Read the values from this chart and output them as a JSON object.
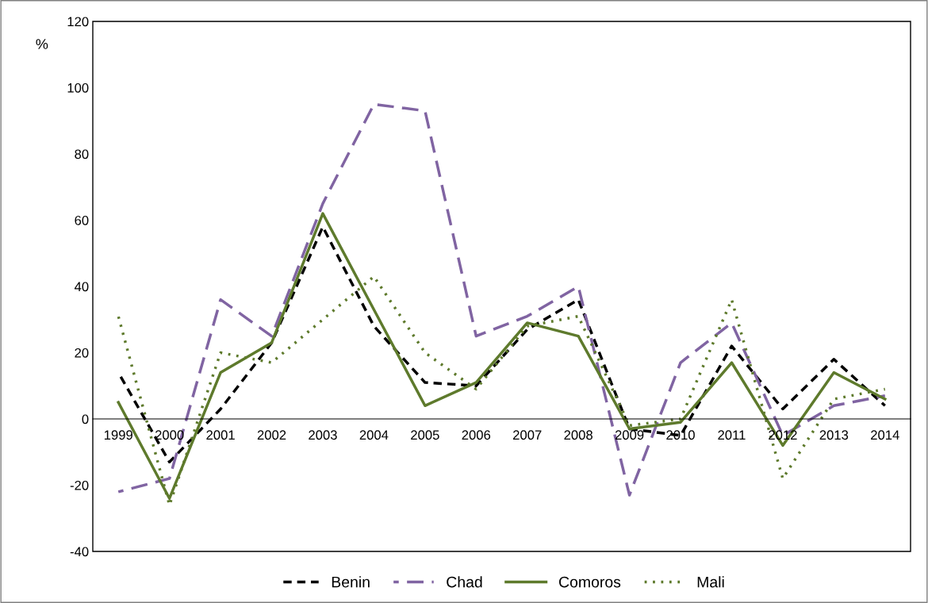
{
  "chart_data": {
    "type": "line",
    "ylabel": "%",
    "categories": [
      "1999",
      "2000",
      "2001",
      "2002",
      "2003",
      "2004",
      "2005",
      "2006",
      "2007",
      "2008",
      "2009",
      "2010",
      "2011",
      "2012",
      "2013",
      "2014"
    ],
    "series": [
      {
        "name": "Benin",
        "color": "#000000",
        "line_style": "dashed",
        "values": [
          14,
          -13,
          3,
          23,
          58,
          28,
          11,
          10,
          27,
          36,
          -3,
          -5,
          22,
          3,
          18,
          4
        ]
      },
      {
        "name": "Chad",
        "color": "#8064a2",
        "line_style": "dashed",
        "values": [
          -22,
          -18,
          36,
          25,
          65,
          95,
          93,
          25,
          31,
          40,
          -23,
          17,
          29,
          -5,
          4,
          7
        ]
      },
      {
        "name": "Comoros",
        "color": "#5e7a2c",
        "line_style": "solid",
        "values": [
          5,
          -24,
          14,
          23,
          62,
          33,
          4,
          11,
          29,
          25,
          -3,
          -1,
          17,
          -8,
          14,
          6
        ]
      },
      {
        "name": "Mali",
        "color": "#5e7a2c",
        "line_style": "dotted",
        "values": [
          31,
          -26,
          20,
          17,
          30,
          43,
          20,
          9,
          28,
          31,
          -2,
          0,
          36,
          -18,
          6,
          9
        ]
      }
    ],
    "ylim": [
      -40,
      120
    ],
    "yticks": [
      -40,
      -20,
      0,
      20,
      40,
      60,
      80,
      100,
      120
    ],
    "grid": false,
    "legend": "bottom",
    "marker": "none"
  }
}
